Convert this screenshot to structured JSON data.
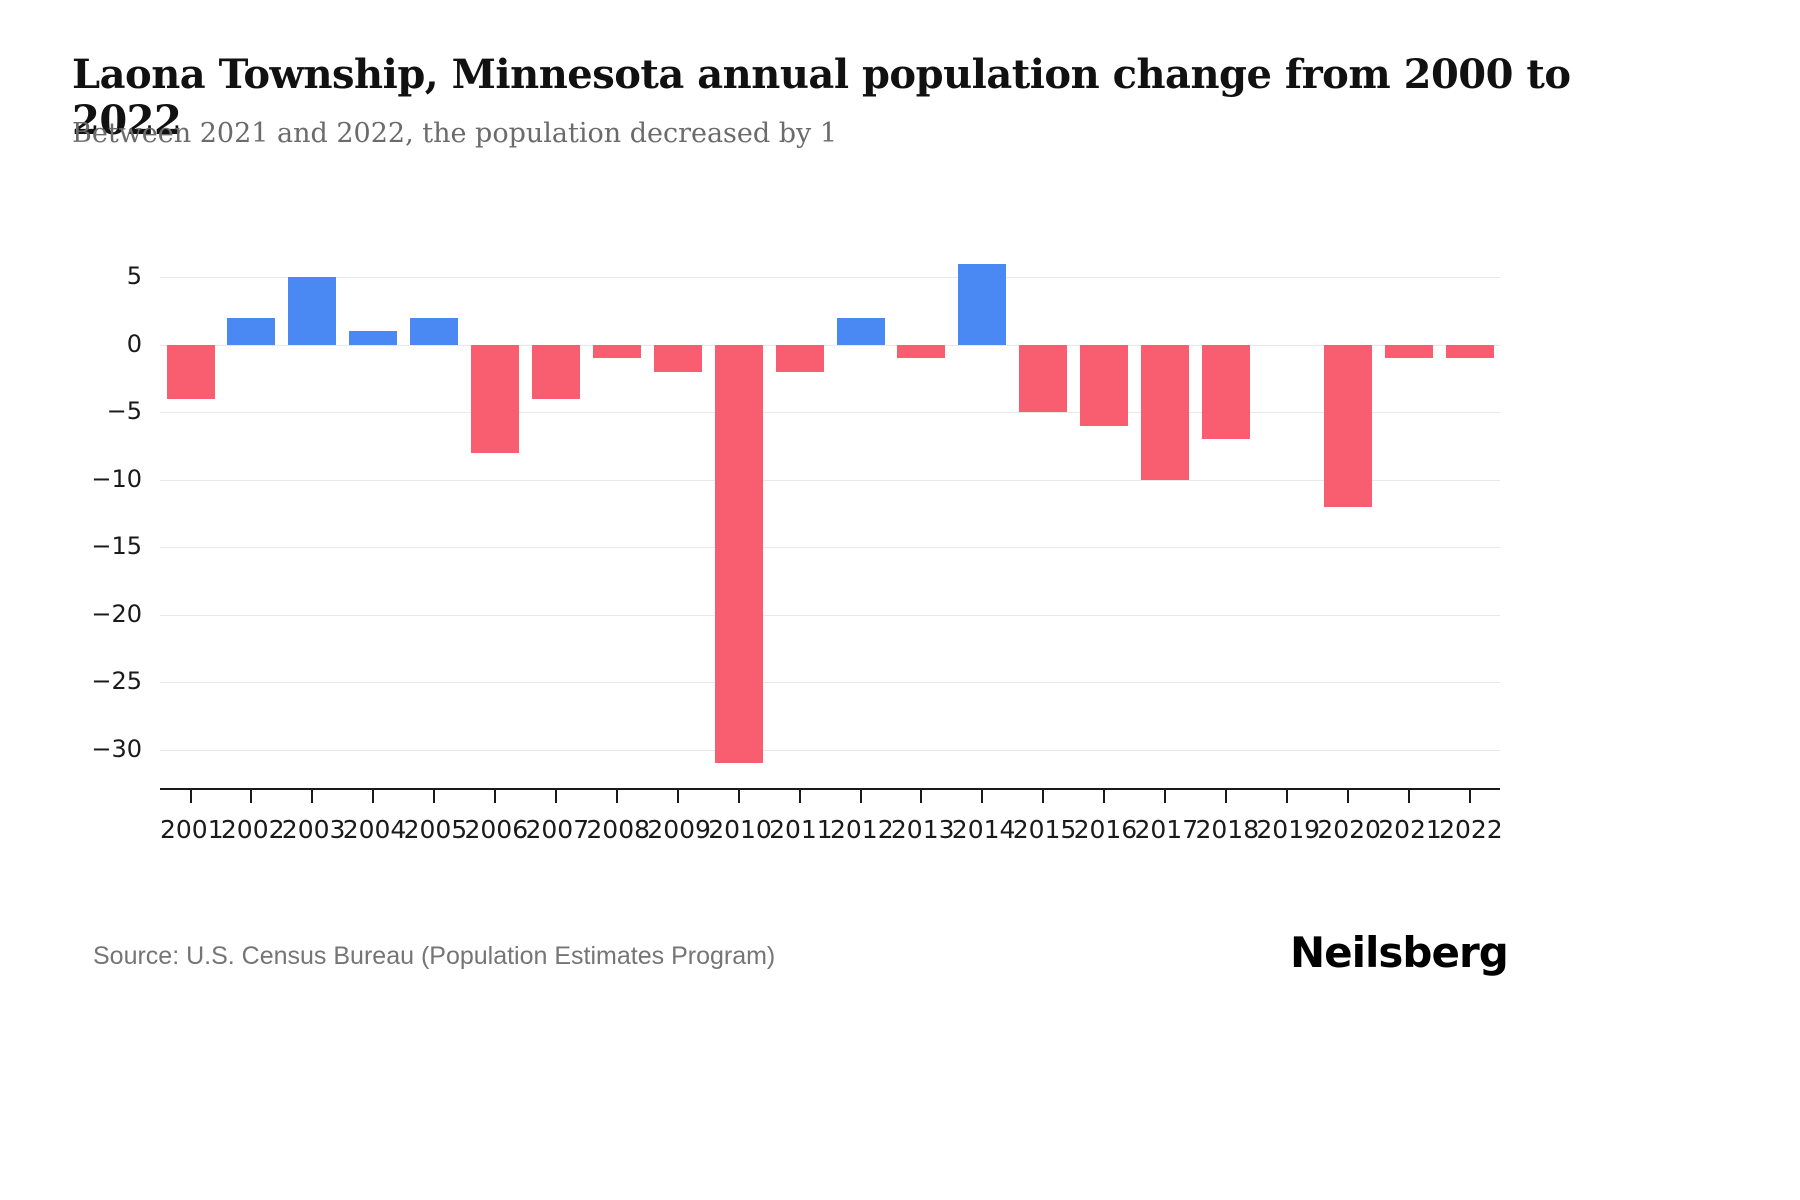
{
  "header": {
    "title": "Laona Township, Minnesota annual population change from 2000 to 2022",
    "subtitle": "Between 2021 and 2022, the population decreased by 1"
  },
  "footer": {
    "source": "Source: U.S. Census Bureau (Population Estimates Program)",
    "logo": "Neilsberg"
  },
  "chart_data": {
    "type": "bar",
    "title": "Laona Township, Minnesota annual population change from 2000 to 2022",
    "subtitle": "Between 2021 and 2022, the population decreased by 1",
    "categories": [
      "2001",
      "2002",
      "2003",
      "2004",
      "2005",
      "2006",
      "2007",
      "2008",
      "2009",
      "2010",
      "2011",
      "2012",
      "2013",
      "2014",
      "2015",
      "2016",
      "2017",
      "2018",
      "2019",
      "2020",
      "2021",
      "2022"
    ],
    "values": [
      -4,
      2,
      5,
      1,
      2,
      -8,
      -4,
      -1,
      -2,
      -31,
      -2,
      2,
      -1,
      6,
      -5,
      -6,
      -10,
      -7,
      0,
      -12,
      -1,
      -1
    ],
    "xlabel": "",
    "ylabel": "",
    "ylim": [
      -33,
      7
    ],
    "yticks": [
      5,
      0,
      -5,
      -10,
      -15,
      -20,
      -25,
      -30
    ],
    "grid": true,
    "legend": false,
    "colors": {
      "positive": "#4a89f3",
      "negative": "#f95d70",
      "gridline": "#e8e8e8",
      "axis": "#1a1a1a"
    }
  }
}
